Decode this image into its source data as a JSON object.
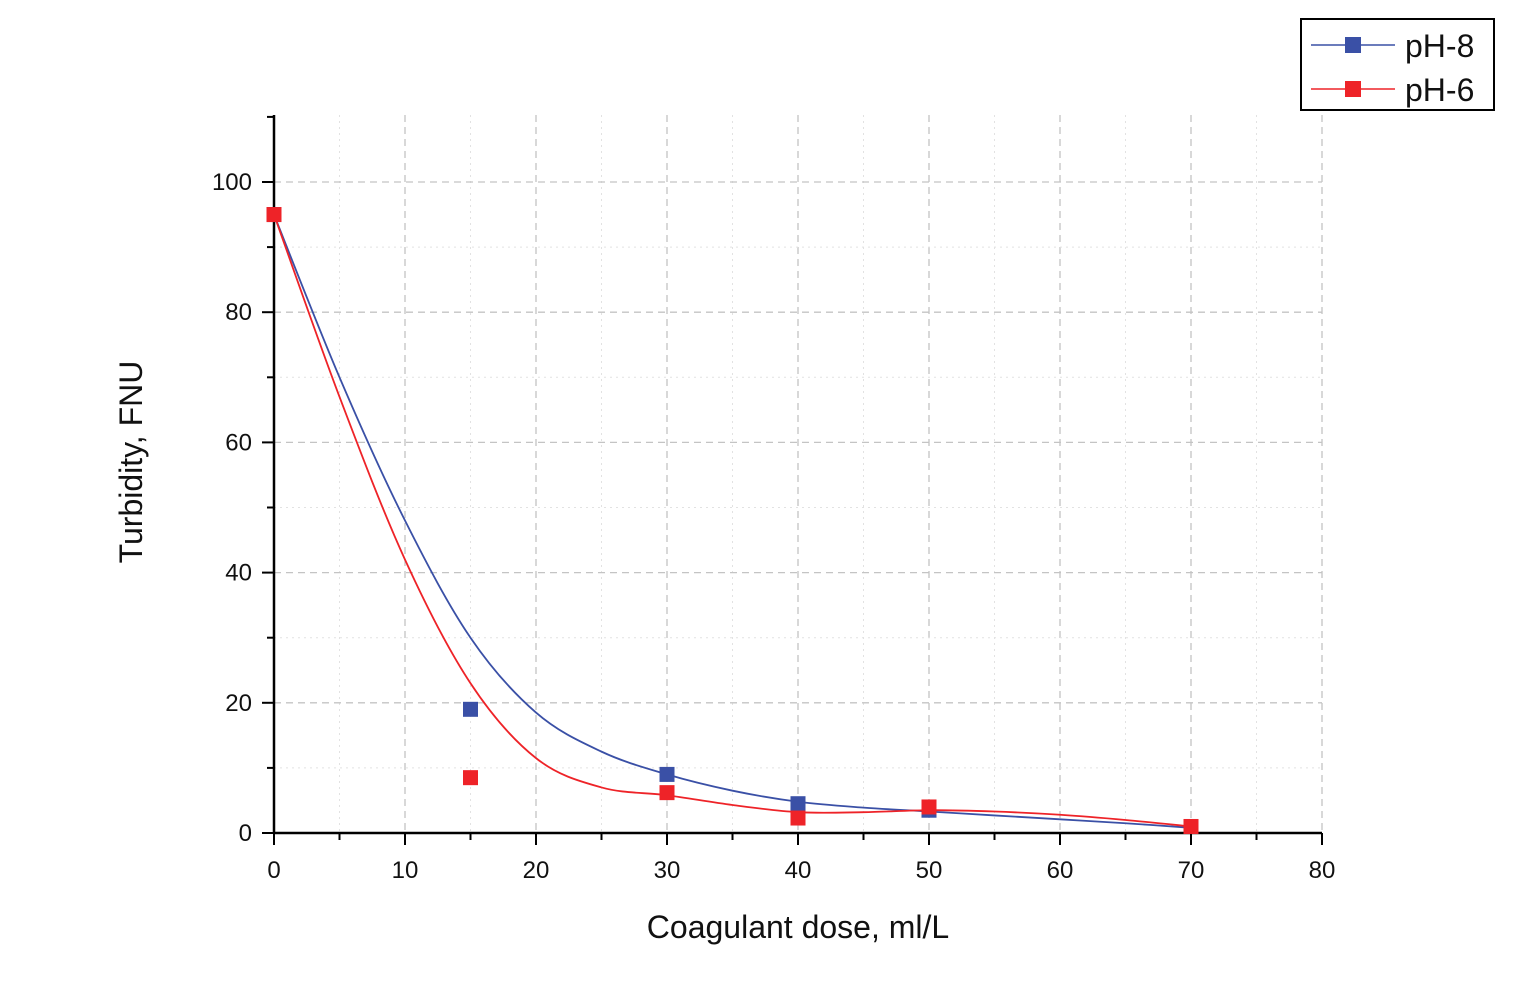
{
  "chart_data": {
    "type": "scatter",
    "title": "",
    "xlabel": "Coagulant dose, ml/L",
    "ylabel": "Turbidity, FNU",
    "xlim": [
      0,
      80
    ],
    "ylim": [
      0,
      110
    ],
    "xticks": [
      0,
      10,
      20,
      30,
      40,
      50,
      60,
      70,
      80
    ],
    "yticks": [
      0,
      20,
      40,
      60,
      80,
      100
    ],
    "grid": true,
    "legend_position": "top-right",
    "series": [
      {
        "name": "pH-8",
        "color": "#3a50a6",
        "marker": "square",
        "points": [
          {
            "x": 0,
            "y": 95
          },
          {
            "x": 15,
            "y": 19
          },
          {
            "x": 30,
            "y": 9
          },
          {
            "x": 40,
            "y": 4.5
          },
          {
            "x": 50,
            "y": 3.5
          },
          {
            "x": 70,
            "y": 1
          }
        ],
        "fit": [
          {
            "x": 0,
            "y": 95
          },
          {
            "x": 5,
            "y": 70
          },
          {
            "x": 10,
            "y": 48
          },
          {
            "x": 15,
            "y": 30
          },
          {
            "x": 20,
            "y": 18.5
          },
          {
            "x": 25,
            "y": 12.5
          },
          {
            "x": 30,
            "y": 9
          },
          {
            "x": 35,
            "y": 6.5
          },
          {
            "x": 40,
            "y": 4.8
          },
          {
            "x": 45,
            "y": 3.9
          },
          {
            "x": 50,
            "y": 3.3
          },
          {
            "x": 55,
            "y": 2.7
          },
          {
            "x": 60,
            "y": 2.1
          },
          {
            "x": 65,
            "y": 1.5
          },
          {
            "x": 70,
            "y": 0.8
          }
        ]
      },
      {
        "name": "pH-6",
        "color": "#ee2328",
        "marker": "square",
        "points": [
          {
            "x": 0,
            "y": 95
          },
          {
            "x": 15,
            "y": 8.5
          },
          {
            "x": 30,
            "y": 6.2
          },
          {
            "x": 40,
            "y": 2.3
          },
          {
            "x": 50,
            "y": 4
          },
          {
            "x": 70,
            "y": 1
          }
        ],
        "fit": [
          {
            "x": 0,
            "y": 95
          },
          {
            "x": 5,
            "y": 67
          },
          {
            "x": 10,
            "y": 42
          },
          {
            "x": 15,
            "y": 23
          },
          {
            "x": 20,
            "y": 11.5
          },
          {
            "x": 25,
            "y": 7
          },
          {
            "x": 30,
            "y": 5.8
          },
          {
            "x": 35,
            "y": 4.3
          },
          {
            "x": 40,
            "y": 3.2
          },
          {
            "x": 45,
            "y": 3.2
          },
          {
            "x": 50,
            "y": 3.5
          },
          {
            "x": 55,
            "y": 3.3
          },
          {
            "x": 60,
            "y": 2.8
          },
          {
            "x": 65,
            "y": 2
          },
          {
            "x": 70,
            "y": 1
          }
        ]
      }
    ]
  }
}
